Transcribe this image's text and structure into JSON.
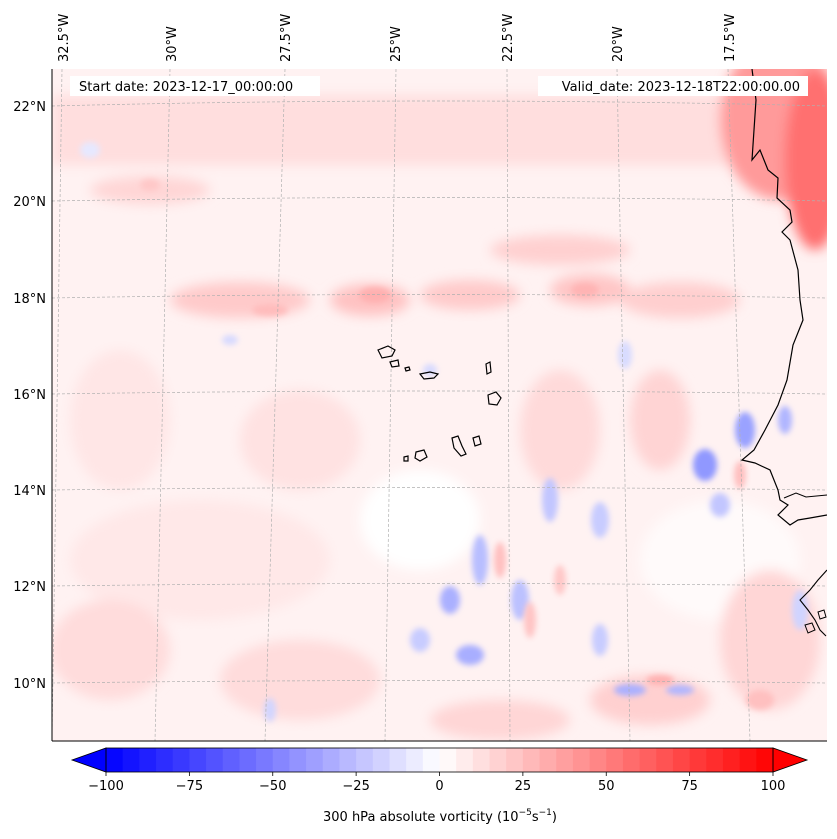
{
  "map": {
    "start_date_label": "Start date: 2023-12-17_00:00:00",
    "valid_date_label": "Valid_date: 2023-12-18T22:00:00.00",
    "lon_ticks": [
      "32.5°W",
      "30°W",
      "27.5°W",
      "25°W",
      "22.5°W",
      "20°W",
      "17.5°W"
    ],
    "lat_ticks": [
      "22°N",
      "20°N",
      "18°N",
      "16°N",
      "14°N",
      "12°N",
      "10°N"
    ],
    "colors": {
      "coast": "#000000",
      "grid": "#b0b0b0",
      "neg_max": "#0000ff",
      "pos_max": "#ff0000",
      "neutral": "#ffffff"
    }
  },
  "colorbar": {
    "label_prefix": "300 hPa absolute vorticity (10",
    "label_exp1": "−5",
    "label_mid": "s",
    "label_exp2": "−1",
    "label_suffix": ")",
    "ticks": [
      "−100",
      "−75",
      "−50",
      "−25",
      "0",
      "25",
      "50",
      "75",
      "100"
    ],
    "min": -100,
    "max": 100
  }
}
